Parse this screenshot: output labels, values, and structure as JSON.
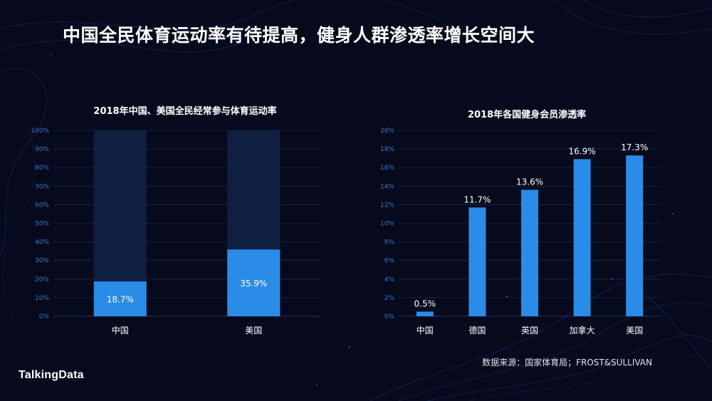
{
  "page": {
    "title": "中国全民体育运动率有待提高，健身人群渗透率增长空间大",
    "source": "数据来源：国家体育局；FROST&SULLIVAN",
    "logo_text": "TalkingData"
  },
  "colors": {
    "background": "#070a1c",
    "bar_fill": "#2a8ce6",
    "bar_track": "#0f1f42",
    "axis_text": "#2f7ad6",
    "grid": "#1e3460"
  },
  "chart_data": [
    {
      "type": "bar",
      "title": "2018年中国、美国全民经常参与体育运动率",
      "categories": [
        "中国",
        "美国"
      ],
      "values": [
        18.7,
        35.9
      ],
      "value_labels": [
        "18.7%",
        "35.9%"
      ],
      "ylim": [
        0,
        100
      ],
      "yticks": [
        "0%",
        "10%",
        "20%",
        "30%",
        "40%",
        "50%",
        "60%",
        "70%",
        "80%",
        "90%",
        "100%"
      ],
      "stacked_background": true,
      "label_position": "inside",
      "grid": true
    },
    {
      "type": "bar",
      "title": "2018年各国健身会员渗透率",
      "categories": [
        "中国",
        "德国",
        "英国",
        "加拿大",
        "美国"
      ],
      "values": [
        0.5,
        11.7,
        13.6,
        16.9,
        17.3
      ],
      "value_labels": [
        "0.5%",
        "11.7%",
        "13.6%",
        "16.9%",
        "17.3%"
      ],
      "ylim": [
        0,
        20
      ],
      "yticks": [
        "0%",
        "2%",
        "4%",
        "6%",
        "8%",
        "10%",
        "12%",
        "14%",
        "16%",
        "18%",
        "20%"
      ],
      "label_position": "above",
      "grid": true
    }
  ]
}
